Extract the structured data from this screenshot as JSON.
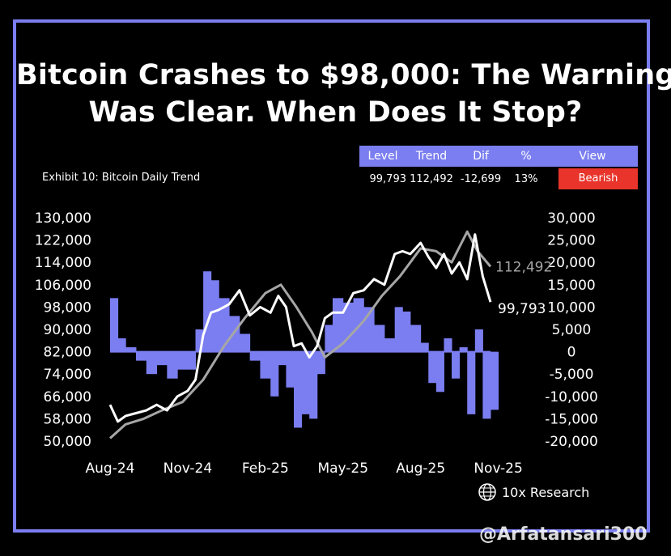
{
  "headline": {
    "line1": "Bitcoin Crashes to $98,000: The Warning",
    "line2": "Was Clear. When Does It Stop?"
  },
  "exhibit_label": "Exhibit 10: Bitcoin Daily Trend",
  "summary": {
    "headers": [
      "Level",
      "Trend",
      "Dif",
      "%",
      "View"
    ],
    "values": [
      "99,793",
      "112,492",
      "-12,699",
      "13%",
      "Bearish"
    ],
    "view_color": "#e8342a"
  },
  "brand": {
    "name": "10x Research",
    "icon": "globe-icon"
  },
  "watermark": "@Arfatansari300",
  "colors": {
    "frame": "#7b7ef0",
    "area": "#7b7ef0",
    "price": "#ffffff",
    "trend": "#a6a6a6",
    "background": "#000000"
  },
  "chart_data": {
    "type": "line",
    "x_tick_labels": [
      "Aug-24",
      "Nov-24",
      "Feb-25",
      "May-25",
      "Aug-25",
      "Nov-25"
    ],
    "x_tick_months": [
      0,
      3,
      6,
      9,
      12,
      15
    ],
    "left_axis": {
      "ticks": [
        130000,
        122000,
        114000,
        106000,
        98000,
        90000,
        82000,
        74000,
        66000,
        58000,
        50000
      ],
      "tick_labels": [
        "130,000",
        "122,000",
        "114,000",
        "106,000",
        "98,000",
        "90,000",
        "82,000",
        "74,000",
        "66,000",
        "58,000",
        "50,000"
      ],
      "range": [
        50000,
        130000
      ]
    },
    "right_axis": {
      "ticks": [
        30000,
        25000,
        20000,
        15000,
        10000,
        5000,
        0,
        -5000,
        -10000,
        -15000,
        -20000
      ],
      "tick_labels": [
        "30,000",
        "25,000",
        "20,000",
        "15,000",
        "10,000",
        "5,000",
        "0",
        "-5,000",
        "-10,000",
        "-15,000",
        "-20,000"
      ],
      "range": [
        -20000,
        30000
      ]
    },
    "end_labels": {
      "trend": "112,492",
      "price": "99,793"
    },
    "series": [
      {
        "role": "price",
        "axis": "left",
        "x": [
          0,
          0.3,
          0.6,
          1.0,
          1.4,
          1.8,
          2.2,
          2.6,
          3.0,
          3.3,
          3.6,
          3.9,
          4.2,
          4.6,
          5.0,
          5.4,
          5.8,
          6.2,
          6.5,
          6.8,
          7.1,
          7.4,
          7.7,
          8.0,
          8.3,
          8.6,
          9.0,
          9.4,
          9.8,
          10.2,
          10.6,
          11.0,
          11.3,
          11.6,
          12.0,
          12.3,
          12.6,
          12.9,
          13.2,
          13.5,
          13.8,
          14.1,
          14.4,
          14.7
        ],
        "values": [
          63000,
          57000,
          59000,
          60000,
          61000,
          63000,
          61000,
          66000,
          68000,
          72000,
          88000,
          96000,
          97000,
          99000,
          104000,
          95000,
          98000,
          96000,
          102000,
          98000,
          84000,
          85000,
          80000,
          84000,
          94000,
          96000,
          96000,
          103000,
          104000,
          108000,
          106000,
          117000,
          118000,
          117000,
          121000,
          116000,
          112000,
          117000,
          110000,
          114000,
          108000,
          124000,
          109000,
          99793
        ]
      },
      {
        "role": "trend",
        "axis": "left",
        "x": [
          0,
          0.6,
          1.3,
          2.0,
          2.8,
          3.6,
          4.4,
          5.2,
          6.0,
          6.6,
          7.2,
          7.8,
          8.3,
          9.0,
          9.8,
          10.5,
          11.2,
          12.0,
          12.6,
          13.2,
          13.8,
          14.2,
          14.7
        ],
        "values": [
          51000,
          56000,
          58000,
          61000,
          64000,
          72000,
          84000,
          94000,
          103000,
          106000,
          98000,
          89000,
          80000,
          85000,
          93000,
          102000,
          109000,
          119000,
          118000,
          114000,
          125000,
          118000,
          112492
        ]
      },
      {
        "role": "difference",
        "axis": "right",
        "x": [
          0,
          0.3,
          0.6,
          1.0,
          1.4,
          1.8,
          2.2,
          2.6,
          3.0,
          3.3,
          3.6,
          3.9,
          4.2,
          4.6,
          5.0,
          5.4,
          5.8,
          6.2,
          6.5,
          6.8,
          7.1,
          7.4,
          7.7,
          8.0,
          8.3,
          8.6,
          9.0,
          9.4,
          9.8,
          10.2,
          10.6,
          11.0,
          11.3,
          11.6,
          12.0,
          12.3,
          12.6,
          12.9,
          13.2,
          13.5,
          13.8,
          14.1,
          14.4,
          14.7
        ],
        "values": [
          12000,
          3000,
          1000,
          -2000,
          -5000,
          -3000,
          -6000,
          -4000,
          -4000,
          5000,
          18000,
          16000,
          12000,
          8000,
          4000,
          -2000,
          -6000,
          -10000,
          -3000,
          -8000,
          -17000,
          -14000,
          -15000,
          -5000,
          6000,
          12000,
          11000,
          12000,
          10000,
          6000,
          3000,
          10000,
          9000,
          6000,
          2000,
          -7000,
          -9000,
          3000,
          -6000,
          1000,
          -14000,
          5000,
          -15000,
          -13000
        ]
      }
    ]
  }
}
